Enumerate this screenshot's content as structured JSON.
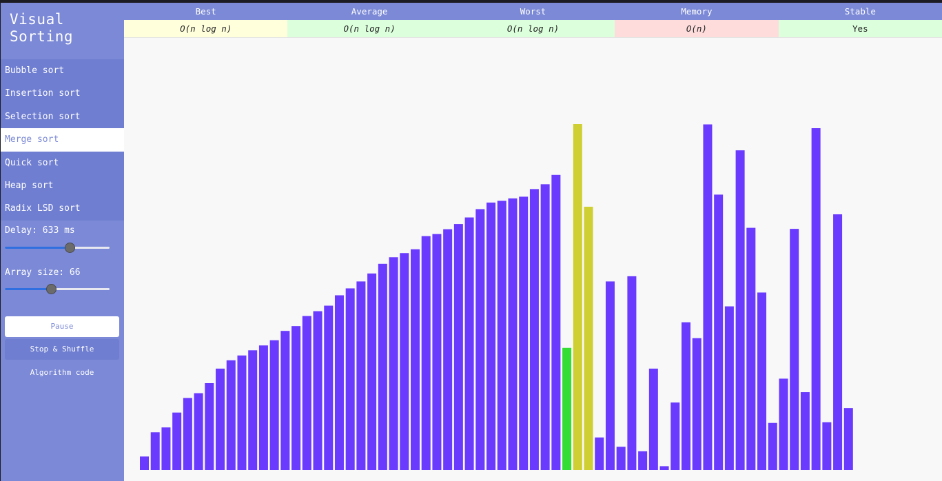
{
  "app": {
    "title": "Visual\nSorting"
  },
  "algorithms": [
    {
      "label": "Bubble sort",
      "active": false
    },
    {
      "label": "Insertion sort",
      "active": false
    },
    {
      "label": "Selection sort",
      "active": false
    },
    {
      "label": "Merge sort",
      "active": true
    },
    {
      "label": "Quick sort",
      "active": false
    },
    {
      "label": "Heap sort",
      "active": false
    },
    {
      "label": "Radix LSD sort",
      "active": false
    }
  ],
  "controls": {
    "delay_label": "Delay: 633 ms",
    "delay_fraction": 0.62,
    "size_label": "Array size: 66",
    "size_fraction": 0.44,
    "pause_label": "Pause",
    "stop_label": "Stop & Shuffle",
    "code_label": "Algorithm code"
  },
  "complexity": {
    "headers": [
      "Best",
      "Average",
      "Worst",
      "Memory",
      "Stable"
    ],
    "values": [
      "O(n log n)",
      "O(n log n)",
      "O(n log n)",
      "O(n)",
      "Yes"
    ],
    "cell_colors": [
      "#ffffdc",
      "#dcffdc",
      "#dcffdc",
      "#ffdcdc",
      "#dcffdc"
    ]
  },
  "colors": {
    "sidebar": "#7b89d6",
    "bar_default": "#6a3aff",
    "bar_compare": "#cfcf33",
    "bar_current": "#33dd33"
  },
  "chart_data": {
    "type": "bar",
    "ymax": 100,
    "values": [
      3.9,
      10.9,
      12.3,
      16.6,
      20.8,
      22.2,
      25.1,
      29.3,
      31.7,
      33.1,
      34.6,
      36.0,
      37.5,
      40.2,
      41.6,
      44.5,
      45.9,
      47.5,
      50.5,
      52.5,
      54.5,
      56.8,
      59.6,
      61.5,
      62.7,
      63.8,
      67.6,
      68.2,
      69.6,
      71.1,
      73.0,
      75.4,
      77.3,
      77.8,
      78.5,
      79.0,
      81.2,
      82.6,
      85.3,
      35.3,
      100.0,
      76.1,
      9.4,
      54.5,
      6.7,
      56.0,
      5.4,
      29.3,
      1.1,
      19.5,
      42.7,
      38.1,
      99.9,
      79.6,
      47.3,
      92.4,
      70.0,
      51.3,
      13.6,
      26.4,
      69.7,
      22.5,
      98.8,
      13.8,
      73.9,
      17.9
    ],
    "states": [
      "d",
      "d",
      "d",
      "d",
      "d",
      "d",
      "d",
      "d",
      "d",
      "d",
      "d",
      "d",
      "d",
      "d",
      "d",
      "d",
      "d",
      "d",
      "d",
      "d",
      "d",
      "d",
      "d",
      "d",
      "d",
      "d",
      "d",
      "d",
      "d",
      "d",
      "d",
      "d",
      "d",
      "d",
      "d",
      "d",
      "d",
      "d",
      "d",
      "g",
      "y",
      "y",
      "d",
      "d",
      "d",
      "d",
      "d",
      "d",
      "d",
      "d",
      "d",
      "d",
      "d",
      "d",
      "d",
      "d",
      "d",
      "d",
      "d",
      "d",
      "d",
      "d",
      "d",
      "d",
      "d",
      "d"
    ]
  }
}
